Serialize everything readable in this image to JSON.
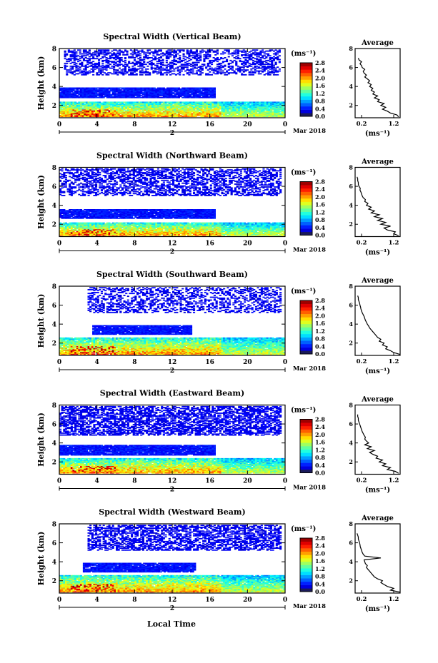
{
  "figure": {
    "xlabel": "Local Time",
    "date_label": "Mar 2018",
    "day_label": "2",
    "colorbar_unit": "(ms⁻¹)",
    "profile_title": "Average",
    "profile_xlabel": "(ms⁻¹)"
  },
  "chart_data": [
    {
      "type": "heatmap",
      "title": "Spectral Width (Vertical Beam)",
      "ylabel": "Height (km)",
      "xlabel": "Local Time",
      "x_ticks": [
        "0",
        "4",
        "8",
        "12",
        "16",
        "20",
        "0"
      ],
      "xlim": [
        0,
        24
      ],
      "ylim": [
        0.7,
        8
      ],
      "y_ticks": [
        2,
        4,
        6,
        8
      ],
      "colorbar": {
        "unit": "(ms⁻¹)",
        "ticks": [
          "0.0",
          "0.4",
          "0.8",
          "1.2",
          "1.6",
          "2.0",
          "2.4",
          "2.8"
        ],
        "range": [
          0,
          2.8
        ]
      },
      "layers": [
        {
          "name": "upper",
          "h_min": 5.2,
          "h_max": 7.9,
          "t_start": 0.5,
          "t_end": 23.5,
          "value": 0.15,
          "density": 0.45
        },
        {
          "name": "middle",
          "h_min": 2.8,
          "h_max": 3.9,
          "t_start": 0,
          "t_end": 16.5,
          "value": 0.2,
          "density": 0.95
        },
        {
          "name": "lower",
          "h_min": 0.8,
          "h_max": 2.4,
          "t_start": 0,
          "t_end": 24,
          "value": 0.7,
          "density": 0.97
        }
      ],
      "profile": {
        "title": "Average",
        "xlabel": "(ms⁻¹)",
        "x_ticks": [
          "0.2",
          "1.2"
        ],
        "xlim": [
          0,
          1.4
        ],
        "ylim": [
          0.7,
          8
        ],
        "y_ticks": [
          2,
          4,
          6,
          8
        ],
        "heights": [
          0.8,
          1.0,
          1.2,
          1.4,
          1.6,
          1.8,
          2.0,
          2.2,
          2.4,
          2.6,
          2.8,
          3.0,
          3.2,
          3.4,
          3.6,
          3.8,
          4.0,
          4.2,
          4.4,
          4.6,
          4.8,
          5.0,
          5.2,
          5.4,
          5.6,
          5.8,
          6.0,
          6.2,
          6.4,
          6.6,
          6.8,
          7.0
        ],
        "values": [
          1.35,
          1.3,
          1.1,
          1.0,
          0.85,
          0.95,
          0.8,
          0.9,
          0.7,
          0.75,
          0.6,
          0.7,
          0.55,
          0.6,
          0.5,
          0.55,
          0.45,
          0.5,
          0.4,
          0.45,
          0.38,
          0.3,
          0.35,
          0.28,
          0.25,
          0.3,
          0.22,
          0.2,
          0.15,
          0.2,
          0.12,
          0.1
        ]
      }
    },
    {
      "type": "heatmap",
      "title": "Spectral Width (Northward Beam)",
      "ylabel": "Height (km)",
      "xlabel": "Local Time",
      "x_ticks": [
        "0",
        "4",
        "8",
        "12",
        "16",
        "20",
        "0"
      ],
      "xlim": [
        0,
        24
      ],
      "ylim": [
        0.7,
        8
      ],
      "y_ticks": [
        2,
        4,
        6,
        8
      ],
      "colorbar": {
        "unit": "(ms⁻¹)",
        "ticks": [
          "0.0",
          "0.4",
          "0.8",
          "1.2",
          "1.6",
          "2.0",
          "2.4",
          "2.8"
        ],
        "range": [
          0,
          2.8
        ]
      },
      "layers": [
        {
          "name": "upper",
          "h_min": 5.0,
          "h_max": 7.9,
          "t_start": 0,
          "t_end": 23.5,
          "value": 0.15,
          "density": 0.5
        },
        {
          "name": "middle",
          "h_min": 2.6,
          "h_max": 3.6,
          "t_start": 0,
          "t_end": 16.5,
          "value": 0.2,
          "density": 0.95
        },
        {
          "name": "lower",
          "h_min": 0.8,
          "h_max": 2.2,
          "t_start": 0,
          "t_end": 24,
          "value": 0.8,
          "density": 0.97
        }
      ],
      "profile": {
        "title": "Average",
        "xlabel": "(ms⁻¹)",
        "x_ticks": [
          "0.2",
          "1.2"
        ],
        "xlim": [
          0,
          1.4
        ],
        "ylim": [
          0.7,
          8
        ],
        "y_ticks": [
          2,
          4,
          6,
          8
        ],
        "heights": [
          0.8,
          1.0,
          1.2,
          1.4,
          1.6,
          1.8,
          2.0,
          2.2,
          2.4,
          2.6,
          2.8,
          3.0,
          3.2,
          3.4,
          3.6,
          3.8,
          4.0,
          4.2,
          4.4,
          4.6,
          4.8,
          5.0,
          5.2,
          5.4,
          5.6,
          5.8,
          6.0,
          6.2,
          6.4,
          6.6,
          6.8,
          7.0
        ],
        "values": [
          1.35,
          1.2,
          1.25,
          1.0,
          0.9,
          1.1,
          0.8,
          0.95,
          0.7,
          0.85,
          0.6,
          0.75,
          0.5,
          0.6,
          0.42,
          0.5,
          0.35,
          0.4,
          0.3,
          0.32,
          0.25,
          0.22,
          0.2,
          0.18,
          0.15,
          0.16,
          0.12,
          0.1,
          0.1,
          0.08,
          0.08,
          0.06
        ]
      }
    },
    {
      "type": "heatmap",
      "title": "Spectral Width (Southward Beam)",
      "ylabel": "Height (km)",
      "xlabel": "Local Time",
      "x_ticks": [
        "0",
        "4",
        "8",
        "12",
        "16",
        "20",
        "0"
      ],
      "xlim": [
        0,
        24
      ],
      "ylim": [
        0.7,
        8
      ],
      "y_ticks": [
        2,
        4,
        6,
        8
      ],
      "colorbar": {
        "unit": "(ms⁻¹)",
        "ticks": [
          "0.0",
          "0.4",
          "0.8",
          "1.2",
          "1.6",
          "2.0",
          "2.4",
          "2.8"
        ],
        "range": [
          0,
          2.8
        ]
      },
      "layers": [
        {
          "name": "upper",
          "h_min": 5.2,
          "h_max": 7.9,
          "t_start": 3,
          "t_end": 23.5,
          "value": 0.15,
          "density": 0.4
        },
        {
          "name": "middle",
          "h_min": 2.9,
          "h_max": 3.9,
          "t_start": 3.5,
          "t_end": 14,
          "value": 0.2,
          "density": 0.95
        },
        {
          "name": "lower",
          "h_min": 0.8,
          "h_max": 2.6,
          "t_start": 0,
          "t_end": 24,
          "value": 0.7,
          "density": 0.97
        }
      ],
      "profile": {
        "title": "Average",
        "xlabel": "(ms⁻¹)",
        "x_ticks": [
          "0.2",
          "1.2"
        ],
        "xlim": [
          0,
          1.4
        ],
        "ylim": [
          0.7,
          8
        ],
        "y_ticks": [
          2,
          4,
          6,
          8
        ],
        "heights": [
          0.8,
          1.0,
          1.2,
          1.4,
          1.6,
          1.8,
          2.0,
          2.2,
          2.4,
          2.6,
          2.8,
          3.0,
          3.2,
          3.4,
          3.6,
          3.8,
          4.0,
          4.2,
          4.4,
          4.6,
          4.8,
          5.0,
          5.2,
          5.4,
          5.6,
          5.8,
          6.0,
          6.2,
          6.4,
          6.6,
          6.8,
          7.0
        ],
        "values": [
          1.4,
          1.2,
          1.1,
          0.95,
          1.0,
          0.85,
          0.9,
          0.75,
          0.8,
          0.7,
          0.65,
          0.6,
          0.55,
          0.5,
          0.45,
          0.42,
          0.38,
          0.35,
          0.32,
          0.3,
          0.28,
          0.25,
          0.22,
          0.2,
          0.18,
          0.17,
          0.15,
          0.14,
          0.12,
          0.1,
          0.1,
          0.08
        ]
      }
    },
    {
      "type": "heatmap",
      "title": "Spectral Width (Eastward Beam)",
      "ylabel": "Height (km)",
      "xlabel": "Local Time",
      "x_ticks": [
        "0",
        "4",
        "8",
        "12",
        "16",
        "20",
        "0"
      ],
      "xlim": [
        0,
        24
      ],
      "ylim": [
        0.7,
        8
      ],
      "y_ticks": [
        2,
        4,
        6,
        8
      ],
      "colorbar": {
        "unit": "(ms⁻¹)",
        "ticks": [
          "0.0",
          "0.4",
          "0.8",
          "1.2",
          "1.6",
          "2.0",
          "2.4",
          "2.8"
        ],
        "range": [
          0,
          2.8
        ]
      },
      "layers": [
        {
          "name": "upper",
          "h_min": 4.8,
          "h_max": 7.9,
          "t_start": 0,
          "t_end": 23.5,
          "value": 0.15,
          "density": 0.6
        },
        {
          "name": "middle",
          "h_min": 2.7,
          "h_max": 3.8,
          "t_start": 0,
          "t_end": 16.5,
          "value": 0.2,
          "density": 0.95
        },
        {
          "name": "lower",
          "h_min": 0.8,
          "h_max": 2.4,
          "t_start": 0,
          "t_end": 24,
          "value": 0.7,
          "density": 0.97
        }
      ],
      "profile": {
        "title": "Average",
        "xlabel": "(ms⁻¹)",
        "x_ticks": [
          "0.2",
          "1.2"
        ],
        "xlim": [
          0,
          1.4
        ],
        "ylim": [
          0.7,
          8
        ],
        "y_ticks": [
          2,
          4,
          6,
          8
        ],
        "heights": [
          0.8,
          1.0,
          1.2,
          1.4,
          1.6,
          1.8,
          2.0,
          2.2,
          2.4,
          2.6,
          2.8,
          3.0,
          3.2,
          3.4,
          3.6,
          3.8,
          4.0,
          4.2,
          4.4,
          4.6,
          4.8,
          5.0,
          5.2,
          5.4,
          5.6,
          5.8,
          6.0,
          6.2,
          6.4,
          6.6,
          6.8,
          7.0
        ],
        "values": [
          1.35,
          1.25,
          1.0,
          1.1,
          0.85,
          0.95,
          0.75,
          0.85,
          0.65,
          0.7,
          0.55,
          0.45,
          0.6,
          0.38,
          0.5,
          0.3,
          0.42,
          0.35,
          0.3,
          0.32,
          0.28,
          0.25,
          0.22,
          0.2,
          0.18,
          0.16,
          0.14,
          0.12,
          0.1,
          0.1,
          0.08,
          0.08
        ]
      }
    },
    {
      "type": "heatmap",
      "title": "Spectral Width (Westward Beam)",
      "ylabel": "Height (km)",
      "xlabel": "Local Time",
      "x_ticks": [
        "0",
        "4",
        "8",
        "12",
        "16",
        "20",
        "0"
      ],
      "xlim": [
        0,
        24
      ],
      "ylim": [
        0.7,
        8
      ],
      "y_ticks": [
        2,
        4,
        6,
        8
      ],
      "colorbar": {
        "unit": "(ms⁻¹)",
        "ticks": [
          "0.0",
          "0.4",
          "0.8",
          "1.2",
          "1.6",
          "2.0",
          "2.4",
          "2.8"
        ],
        "range": [
          0,
          2.8
        ]
      },
      "layers": [
        {
          "name": "upper",
          "h_min": 5.2,
          "h_max": 7.9,
          "t_start": 3,
          "t_end": 23.5,
          "value": 0.15,
          "density": 0.55
        },
        {
          "name": "middle",
          "h_min": 2.9,
          "h_max": 3.9,
          "t_start": 2.5,
          "t_end": 14.5,
          "value": 0.2,
          "density": 0.95
        },
        {
          "name": "lower",
          "h_min": 0.8,
          "h_max": 2.6,
          "t_start": 0,
          "t_end": 24,
          "value": 0.7,
          "density": 0.97
        }
      ],
      "profile": {
        "title": "Average",
        "xlabel": "(ms⁻¹)",
        "x_ticks": [
          "0.2",
          "1.2"
        ],
        "xlim": [
          0,
          1.4
        ],
        "ylim": [
          0.7,
          8
        ],
        "y_ticks": [
          2,
          4,
          6,
          8
        ],
        "heights": [
          0.8,
          1.0,
          1.2,
          1.4,
          1.6,
          1.8,
          2.0,
          2.2,
          2.4,
          2.6,
          2.8,
          3.0,
          3.2,
          3.4,
          3.6,
          3.8,
          4.0,
          4.2,
          4.4,
          4.6,
          4.8,
          5.0,
          5.2,
          5.4,
          5.6,
          5.8,
          6.0,
          6.2,
          6.4,
          6.6,
          6.8,
          7.0
        ],
        "values": [
          1.4,
          1.1,
          1.2,
          1.0,
          0.9,
          0.8,
          0.85,
          0.7,
          0.6,
          0.55,
          0.5,
          0.45,
          0.4,
          0.35,
          0.38,
          0.32,
          0.3,
          0.28,
          0.8,
          0.3,
          0.25,
          0.22,
          0.2,
          0.18,
          0.16,
          0.15,
          0.14,
          0.12,
          0.1,
          0.1,
          0.08,
          0.06
        ]
      }
    }
  ]
}
